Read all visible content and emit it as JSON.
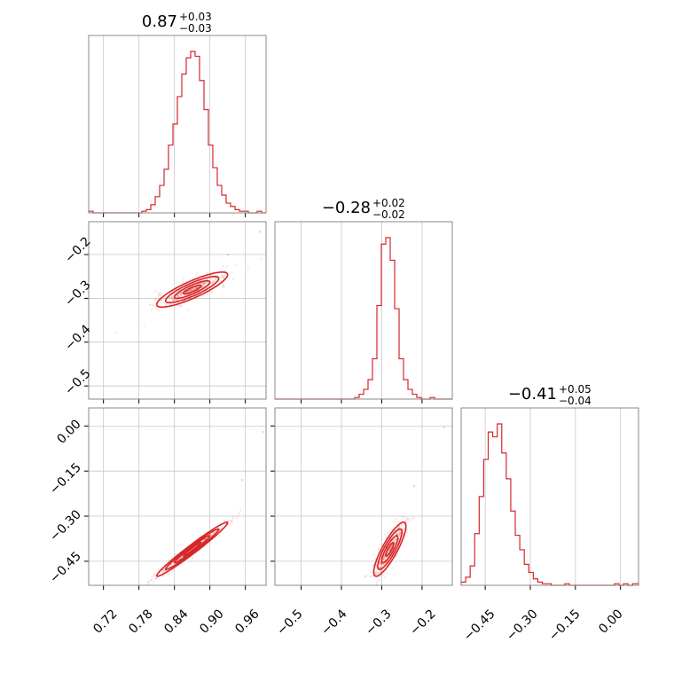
{
  "figure": {
    "type": "corner-plot",
    "accent_color": "#d62728"
  },
  "chart_data": [
    {
      "type": "histogram",
      "panel": "p00",
      "title": {
        "value": "0.87",
        "plus": "+0.03",
        "minus": "−0.03"
      },
      "xlim": [
        0.695,
        0.995
      ],
      "grid": true,
      "bin_edges": [
        0.695,
        0.7025,
        0.71,
        0.7175,
        0.725,
        0.7325,
        0.74,
        0.7475,
        0.755,
        0.7625,
        0.77,
        0.7775,
        0.785,
        0.7925,
        0.8,
        0.8075,
        0.815,
        0.8225,
        0.83,
        0.8375,
        0.845,
        0.8525,
        0.86,
        0.8675,
        0.875,
        0.8825,
        0.89,
        0.8975,
        0.905,
        0.9125,
        0.92,
        0.9275,
        0.935,
        0.9425,
        0.95,
        0.9575,
        0.965,
        0.9725,
        0.98,
        0.9875,
        0.995
      ],
      "values": [
        0.01,
        0,
        0,
        0,
        0,
        0,
        0,
        0,
        0,
        0,
        0,
        0,
        0.01,
        0.02,
        0.05,
        0.1,
        0.17,
        0.27,
        0.42,
        0.55,
        0.72,
        0.86,
        0.96,
        1.0,
        0.97,
        0.82,
        0.64,
        0.42,
        0.28,
        0.17,
        0.11,
        0.06,
        0.04,
        0.02,
        0.01,
        0.01,
        0,
        0,
        0.01,
        0
      ]
    },
    {
      "type": "histogram",
      "panel": "p11",
      "title": {
        "value": "−0.28",
        "plus": "+0.02",
        "minus": "−0.02"
      },
      "xlim": [
        -0.565,
        -0.125
      ],
      "grid": true,
      "bin_edges": [
        -0.565,
        -0.554,
        -0.543,
        -0.532,
        -0.521,
        -0.51,
        -0.499,
        -0.488,
        -0.477,
        -0.466,
        -0.455,
        -0.444,
        -0.433,
        -0.422,
        -0.411,
        -0.4,
        -0.389,
        -0.378,
        -0.367,
        -0.356,
        -0.345,
        -0.334,
        -0.323,
        -0.312,
        -0.301,
        -0.29,
        -0.279,
        -0.268,
        -0.257,
        -0.246,
        -0.235,
        -0.224,
        -0.213,
        -0.202,
        -0.191,
        -0.18,
        -0.169,
        -0.158,
        -0.147,
        -0.136,
        -0.125
      ],
      "values": [
        0,
        0,
        0,
        0,
        0,
        0,
        0,
        0,
        0,
        0,
        0,
        0,
        0,
        0,
        0,
        0,
        0,
        0,
        0.01,
        0.03,
        0.06,
        0.12,
        0.25,
        0.58,
        0.96,
        1.0,
        0.86,
        0.56,
        0.25,
        0.12,
        0.06,
        0.03,
        0.01,
        0,
        0,
        0.01,
        0,
        0,
        0,
        0
      ]
    },
    {
      "type": "histogram",
      "panel": "p22",
      "title": {
        "value": "−0.41",
        "plus": "+0.05",
        "minus": "−0.04"
      },
      "xlim": [
        -0.53,
        0.06
      ],
      "grid": true,
      "bin_edges": [
        -0.53,
        -0.515,
        -0.5,
        -0.485,
        -0.47,
        -0.455,
        -0.44,
        -0.425,
        -0.41,
        -0.395,
        -0.38,
        -0.365,
        -0.35,
        -0.335,
        -0.32,
        -0.305,
        -0.29,
        -0.275,
        -0.26,
        -0.245,
        -0.23,
        -0.215,
        -0.2,
        -0.185,
        -0.17,
        -0.155,
        -0.14,
        -0.125,
        -0.11,
        -0.095,
        -0.08,
        -0.065,
        -0.05,
        -0.035,
        -0.02,
        -0.005,
        0.01,
        0.025,
        0.04,
        0.06
      ],
      "values": [
        0.02,
        0.05,
        0.12,
        0.32,
        0.55,
        0.78,
        0.95,
        0.92,
        1.0,
        0.82,
        0.66,
        0.46,
        0.31,
        0.22,
        0.13,
        0.08,
        0.04,
        0.02,
        0.01,
        0.01,
        0,
        0,
        0,
        0.01,
        0,
        0,
        0,
        0,
        0,
        0,
        0,
        0,
        0,
        0,
        0.01,
        0,
        0.01,
        0,
        0.01
      ]
    },
    {
      "type": "contour-scatter",
      "panel": "p10",
      "xlim": [
        0.695,
        0.995
      ],
      "ylim": [
        -0.53,
        -0.125
      ],
      "grid": true,
      "center": [
        0.87,
        -0.28
      ],
      "sigma_x": 0.03,
      "sigma_y": 0.02,
      "correlation": 0.85,
      "outliers": [
        [
          0.985,
          -0.148
        ],
        [
          0.93,
          -0.2
        ],
        [
          0.81,
          -0.32
        ]
      ]
    },
    {
      "type": "contour-scatter",
      "panel": "p20",
      "xlim": [
        0.695,
        0.995
      ],
      "ylim": [
        -0.53,
        0.06
      ],
      "grid": true,
      "center": [
        0.87,
        -0.41
      ],
      "sigma_x": 0.03,
      "sigma_y": 0.045,
      "correlation": 0.98,
      "outliers": [
        [
          0.99,
          -0.02
        ],
        [
          0.955,
          -0.18
        ]
      ]
    },
    {
      "type": "contour-scatter",
      "panel": "p21",
      "xlim": [
        -0.565,
        -0.125
      ],
      "ylim": [
        -0.53,
        0.06
      ],
      "grid": true,
      "center": [
        -0.28,
        -0.41
      ],
      "sigma_x": 0.02,
      "sigma_y": 0.045,
      "correlation": 0.85,
      "outliers": [
        [
          -0.145,
          -0.005
        ],
        [
          -0.22,
          -0.2
        ],
        [
          -0.34,
          -0.5
        ]
      ]
    }
  ],
  "axes": {
    "col0_x_ticks": [
      "0.72",
      "0.78",
      "0.84",
      "0.90",
      "0.96"
    ],
    "col1_x_ticks": [
      "−0.5",
      "−0.4",
      "−0.3",
      "−0.2"
    ],
    "col2_x_ticks": [
      "−0.45",
      "−0.30",
      "−0.15",
      "0.00"
    ],
    "row1_y_ticks": [
      "−0.2",
      "−0.3",
      "−0.4",
      "−0.5"
    ],
    "row2_y_ticks": [
      "0.00",
      "−0.15",
      "−0.30",
      "−0.45"
    ]
  }
}
